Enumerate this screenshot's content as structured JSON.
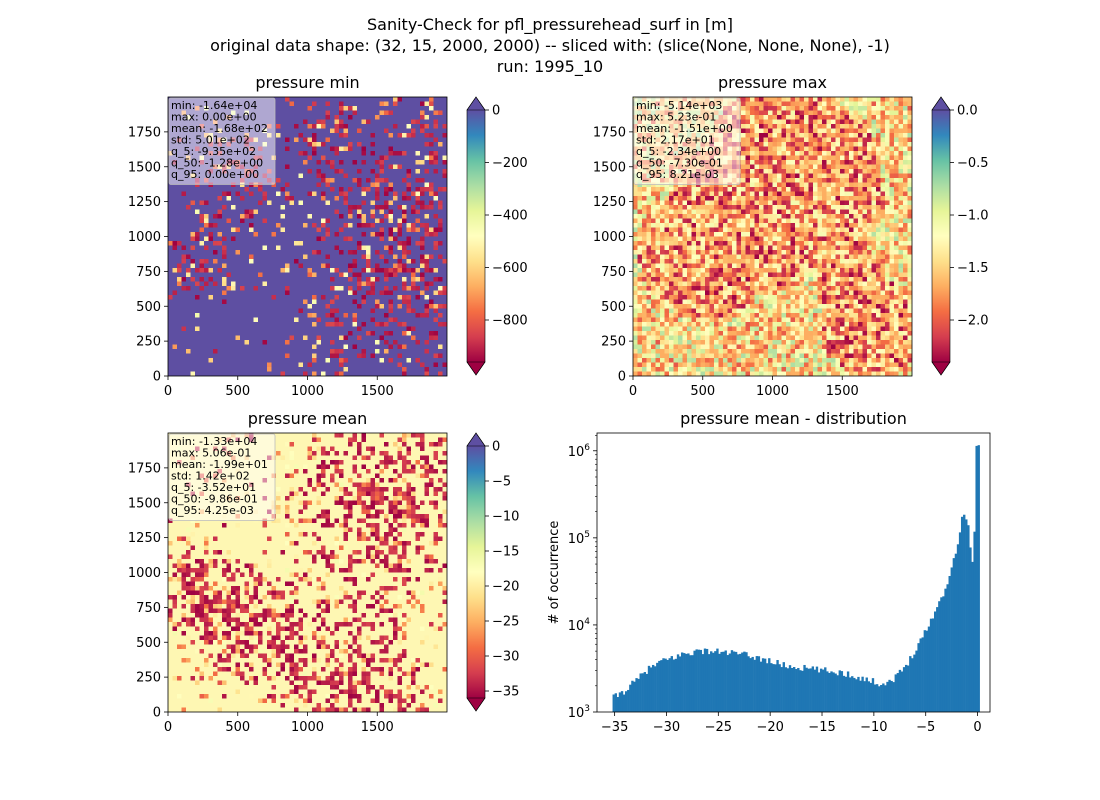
{
  "figure": {
    "title_lines": [
      "Sanity-Check for pfl_pressurehead_surf in [m]",
      "original data shape: (32, 15, 2000, 2000) -- sliced with: (slice(None, None, None), -1)",
      "run: 1995_10"
    ]
  },
  "chart_data": [
    {
      "type": "heatmap",
      "title": "pressure min",
      "colormap": "Spectral",
      "background_color": "#5e4fa2",
      "x_ticks": [
        0,
        500,
        1000,
        1500
      ],
      "y_ticks": [
        0,
        250,
        500,
        750,
        1000,
        1250,
        1500,
        1750
      ],
      "xlim": [
        0,
        2000
      ],
      "ylim": [
        0,
        2000
      ],
      "colorbar": {
        "range": [
          -960,
          0
        ],
        "ticks": [
          {
            "v": 0,
            "label": "0"
          },
          {
            "v": -200,
            "label": "−200"
          },
          {
            "v": -400,
            "label": "−400"
          },
          {
            "v": -600,
            "label": "−600"
          },
          {
            "v": -800,
            "label": "−800"
          }
        ],
        "extend": "both"
      },
      "stats": [
        "min: -1.64e+04",
        "max: 0.00e+00",
        "mean: -1.68e+02",
        "std: 5.01e+02",
        "q_5: -9.35e+02",
        "q_50: -1.28e+00",
        "q_95: 0.00e+00"
      ]
    },
    {
      "type": "heatmap",
      "title": "pressure max",
      "colormap": "Spectral",
      "background_color": "#fdae61",
      "x_ticks": [
        0,
        500,
        1000,
        1500
      ],
      "y_ticks": [
        0,
        250,
        500,
        750,
        1000,
        1250,
        1500,
        1750
      ],
      "xlim": [
        0,
        2000
      ],
      "ylim": [
        0,
        2000
      ],
      "colorbar": {
        "range": [
          -2.4,
          0
        ],
        "ticks": [
          {
            "v": 0,
            "label": "0.0"
          },
          {
            "v": -0.5,
            "label": "−0.5"
          },
          {
            "v": -1.0,
            "label": "−1.0"
          },
          {
            "v": -1.5,
            "label": "−1.5"
          },
          {
            "v": -2.0,
            "label": "−2.0"
          }
        ],
        "extend": "both"
      },
      "stats": [
        "min: -5.14e+03",
        "max: 5.23e-01",
        "mean: -1.51e+00",
        "std: 2.17e+01",
        "q_5: -2.34e+00",
        "q_50: -7.30e-01",
        "q_95: 8.21e-03"
      ]
    },
    {
      "type": "heatmap",
      "title": "pressure mean",
      "colormap": "Spectral",
      "background_color": "#fef7b3",
      "x_ticks": [
        0,
        500,
        1000,
        1500
      ],
      "y_ticks": [
        0,
        250,
        500,
        750,
        1000,
        1250,
        1500,
        1750
      ],
      "xlim": [
        0,
        2000
      ],
      "ylim": [
        0,
        2000
      ],
      "colorbar": {
        "range": [
          -36,
          0
        ],
        "ticks": [
          {
            "v": 0,
            "label": "0"
          },
          {
            "v": -5,
            "label": "−5"
          },
          {
            "v": -10,
            "label": "−10"
          },
          {
            "v": -15,
            "label": "−15"
          },
          {
            "v": -20,
            "label": "−20"
          },
          {
            "v": -25,
            "label": "−25"
          },
          {
            "v": -30,
            "label": "−30"
          },
          {
            "v": -35,
            "label": "−35"
          }
        ],
        "extend": "both"
      },
      "stats": [
        "min: -1.33e+04",
        "max: 5.06e-01",
        "mean: -1.99e+01",
        "std: 1.42e+02",
        "q_5: -3.52e+01",
        "q_50: -9.86e-01",
        "q_95: 4.25e-03"
      ]
    },
    {
      "type": "bar",
      "title": "pressure mean - distribution",
      "ylabel": "# of occurrence",
      "y_scale": "log",
      "bar_color": "#1f77b4",
      "xlim": [
        -36.7,
        1.2
      ],
      "ylim": [
        1000,
        1600000
      ],
      "x_ticks": [
        {
          "v": -35,
          "label": "−35"
        },
        {
          "v": -30,
          "label": "−30"
        },
        {
          "v": -25,
          "label": "−25"
        },
        {
          "v": -20,
          "label": "−20"
        },
        {
          "v": -15,
          "label": "−15"
        },
        {
          "v": -10,
          "label": "−10"
        },
        {
          "v": -5,
          "label": "−5"
        },
        {
          "v": 0,
          "label": "0"
        }
      ],
      "y_ticks": [
        {
          "v": 1000,
          "base": "10",
          "exp": "3"
        },
        {
          "v": 10000,
          "base": "10",
          "exp": "4"
        },
        {
          "v": 100000,
          "base": "10",
          "exp": "5"
        },
        {
          "v": 1000000,
          "base": "10",
          "exp": "6"
        }
      ],
      "bins": {
        "x": [
          -35.0,
          -34.0,
          -33.0,
          -32.0,
          -31.0,
          -30.0,
          -29.0,
          -28.0,
          -27.0,
          -26.0,
          -25.0,
          -24.0,
          -23.0,
          -22.0,
          -21.0,
          -20.0,
          -19.0,
          -18.0,
          -17.0,
          -16.0,
          -15.0,
          -14.0,
          -13.0,
          -12.0,
          -11.0,
          -10.0,
          -9.0,
          -8.0,
          -7.0,
          -6.0,
          -5.0,
          -4.0,
          -3.0,
          -2.5,
          -2.0,
          -1.5,
          -1.0,
          -0.5,
          -0.2
        ],
        "values": [
          1500,
          1800,
          2300,
          3000,
          3600,
          4000,
          4400,
          4800,
          5000,
          5000,
          4900,
          4800,
          4600,
          4400,
          4100,
          3800,
          3500,
          3300,
          3200,
          3100,
          3000,
          2900,
          2800,
          2600,
          2400,
          2200,
          2100,
          2500,
          3400,
          5500,
          9000,
          16000,
          30000,
          50000,
          90000,
          190000,
          140000,
          40000,
          1100000
        ]
      }
    }
  ]
}
